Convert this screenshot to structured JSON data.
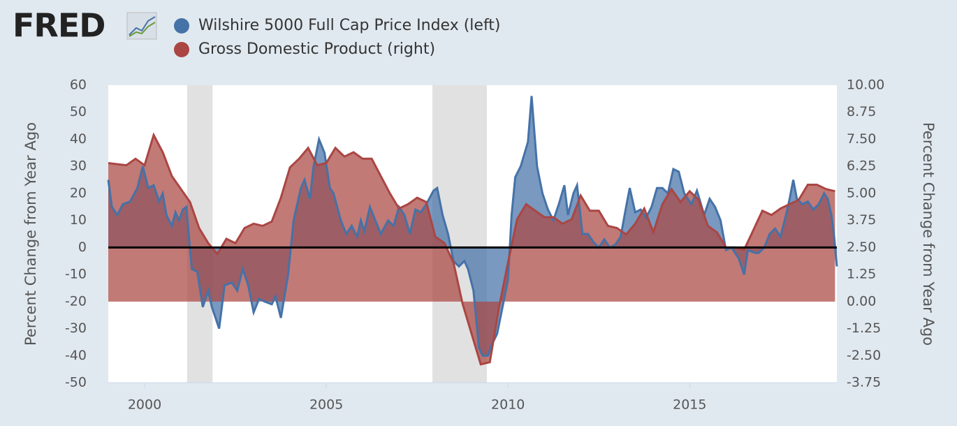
{
  "chart_data": {
    "type": "area",
    "logo": "FRED",
    "y_label": "Percent Change from Year Ago",
    "y2_label": "Percent Change from Year Ago",
    "xlim": [
      1999.0,
      2019.05
    ],
    "xticks": [
      2000,
      2005,
      2010,
      2015
    ],
    "ylim": [
      -50,
      60
    ],
    "yticks": [
      -50,
      -40,
      -30,
      -20,
      -10,
      0,
      10,
      20,
      30,
      40,
      50,
      60
    ],
    "y2lim": [
      -3.75,
      10
    ],
    "y2ticks": [
      {
        "value": -3.75,
        "label": "-3.75"
      },
      {
        "value": -2.5,
        "label": "-2.50"
      },
      -1.25,
      {
        "value": 0,
        "label": "0.00"
      },
      1.25,
      {
        "value": 2.5,
        "label": "2.50"
      },
      3.75,
      {
        "value": 5,
        "label": "5.00"
      },
      6.25,
      {
        "value": 7.5,
        "label": "7.50"
      },
      8.75,
      {
        "value": 10,
        "label": "10.00"
      }
    ],
    "grid": false,
    "zero_line": true,
    "recessions": [
      [
        2001.17,
        2001.87
      ],
      [
        2007.92,
        2009.42
      ]
    ],
    "series": [
      {
        "name": "Wilshire 5000 Full Cap Price Index (left)",
        "color": "#4572a7",
        "axis": "y",
        "x": [
          1999.0,
          1999.1,
          1999.25,
          1999.4,
          1999.6,
          1999.8,
          1999.95,
          2000.1,
          2000.25,
          2000.4,
          2000.5,
          2000.6,
          2000.75,
          2000.85,
          2000.95,
          2001.05,
          2001.15,
          2001.3,
          2001.45,
          2001.6,
          2001.75,
          2001.85,
          2002.05,
          2002.2,
          2002.4,
          2002.55,
          2002.7,
          2002.85,
          2003.0,
          2003.15,
          2003.3,
          2003.5,
          2003.6,
          2003.75,
          2003.95,
          2004.1,
          2004.3,
          2004.4,
          2004.55,
          2004.65,
          2004.8,
          2004.95,
          2005.1,
          2005.2,
          2005.4,
          2005.55,
          2005.7,
          2005.85,
          2005.95,
          2006.05,
          2006.2,
          2006.35,
          2006.5,
          2006.7,
          2006.85,
          2007.0,
          2007.15,
          2007.3,
          2007.45,
          2007.6,
          2007.75,
          2007.95,
          2008.05,
          2008.2,
          2008.35,
          2008.5,
          2008.65,
          2008.8,
          2008.9,
          2009.05,
          2009.2,
          2009.3,
          2009.45,
          2009.55,
          2009.7,
          2009.85,
          2010.0,
          2010.1,
          2010.2,
          2010.35,
          2010.55,
          2010.65,
          2010.8,
          2010.95,
          2011.1,
          2011.25,
          2011.4,
          2011.55,
          2011.65,
          2011.8,
          2011.9,
          2012.05,
          2012.2,
          2012.35,
          2012.5,
          2012.65,
          2012.8,
          2012.95,
          2013.1,
          2013.25,
          2013.35,
          2013.5,
          2013.65,
          2013.8,
          2013.95,
          2014.1,
          2014.25,
          2014.4,
          2014.55,
          2014.7,
          2014.85,
          2015.05,
          2015.2,
          2015.4,
          2015.55,
          2015.7,
          2015.85,
          2016.0,
          2016.15,
          2016.35,
          2016.5,
          2016.6,
          2016.8,
          2016.9,
          2017.05,
          2017.2,
          2017.35,
          2017.5,
          2017.65,
          2017.75,
          2017.85,
          2017.95,
          2018.1,
          2018.25,
          2018.4,
          2018.55,
          2018.7,
          2018.8,
          2018.9,
          2018.97,
          2019.05
        ],
        "values": [
          25,
          15,
          12,
          16,
          17,
          22,
          30,
          22,
          23,
          17,
          20,
          12,
          8,
          13,
          10,
          14,
          15,
          -8,
          -9,
          -22,
          -16,
          -22,
          -30,
          -14,
          -13,
          -16,
          -8,
          -14,
          -24,
          -19,
          -20,
          -21,
          -18,
          -26,
          -10,
          10,
          22,
          25,
          18,
          30,
          40,
          35,
          22,
          20,
          10,
          5,
          8,
          4,
          10,
          6,
          15,
          10,
          5,
          10,
          8,
          15,
          12,
          5,
          14,
          13,
          16,
          21,
          22,
          12,
          5,
          -5,
          -7,
          -5,
          -8,
          -16,
          -37,
          -40,
          -40,
          -36,
          -32,
          -22,
          -12,
          12,
          26,
          30,
          39,
          56,
          30,
          20,
          14,
          10,
          16,
          23,
          12,
          20,
          23,
          5,
          5,
          2,
          0,
          3,
          0,
          1,
          4,
          15,
          22,
          13,
          14,
          11,
          15,
          22,
          22,
          20,
          29,
          28,
          20,
          16,
          21,
          12,
          18,
          15,
          10,
          -1,
          0,
          -4,
          -10,
          -1,
          -2,
          -2,
          0,
          5,
          7,
          4,
          12,
          18,
          25,
          18,
          16,
          17,
          14,
          16,
          20,
          18,
          12,
          5,
          -7
        ]
      },
      {
        "name": "Gross Domestic Product (right)",
        "color": "#aa4643",
        "axis": "y2",
        "x": [
          1999.0,
          1999.25,
          1999.5,
          1999.75,
          2000.0,
          2000.25,
          2000.5,
          2000.75,
          2001.0,
          2001.25,
          2001.5,
          2001.75,
          2002.0,
          2002.25,
          2002.5,
          2002.75,
          2003.0,
          2003.25,
          2003.5,
          2003.75,
          2004.0,
          2004.25,
          2004.5,
          2004.75,
          2005.0,
          2005.25,
          2005.5,
          2005.75,
          2006.0,
          2006.25,
          2006.5,
          2006.75,
          2007.0,
          2007.25,
          2007.5,
          2007.75,
          2008.0,
          2008.25,
          2008.5,
          2008.75,
          2009.0,
          2009.25,
          2009.5,
          2009.75,
          2010.0,
          2010.25,
          2010.5,
          2010.75,
          2011.0,
          2011.25,
          2011.5,
          2011.75,
          2012.0,
          2012.25,
          2012.5,
          2012.75,
          2013.0,
          2013.25,
          2013.5,
          2013.75,
          2014.0,
          2014.25,
          2014.5,
          2014.75,
          2015.0,
          2015.25,
          2015.5,
          2015.75,
          2016.0,
          2016.25,
          2016.5,
          2016.75,
          2017.0,
          2017.25,
          2017.5,
          2017.75,
          2018.0,
          2018.25,
          2018.5,
          2018.75,
          2019.0
        ],
        "values": [
          6.4,
          6.35,
          6.3,
          6.6,
          6.3,
          7.7,
          6.9,
          5.8,
          5.2,
          4.6,
          3.4,
          2.7,
          2.2,
          2.9,
          2.7,
          3.4,
          3.6,
          3.5,
          3.7,
          4.8,
          6.2,
          6.6,
          7.1,
          6.3,
          6.4,
          7.1,
          6.7,
          6.9,
          6.6,
          6.6,
          5.8,
          5.0,
          4.3,
          4.5,
          4.8,
          4.6,
          3.0,
          2.7,
          1.8,
          -0.1,
          -1.5,
          -2.9,
          -2.8,
          -0.3,
          1.8,
          3.8,
          4.5,
          4.2,
          3.9,
          3.9,
          3.6,
          3.8,
          4.9,
          4.2,
          4.2,
          3.5,
          3.4,
          3.1,
          3.6,
          4.3,
          3.2,
          4.5,
          5.2,
          4.6,
          5.1,
          4.7,
          3.5,
          3.2,
          2.5,
          2.5,
          2.4,
          3.3,
          4.2,
          4.0,
          4.3,
          4.5,
          4.7,
          5.4,
          5.4,
          5.2,
          5.1
        ]
      }
    ]
  }
}
